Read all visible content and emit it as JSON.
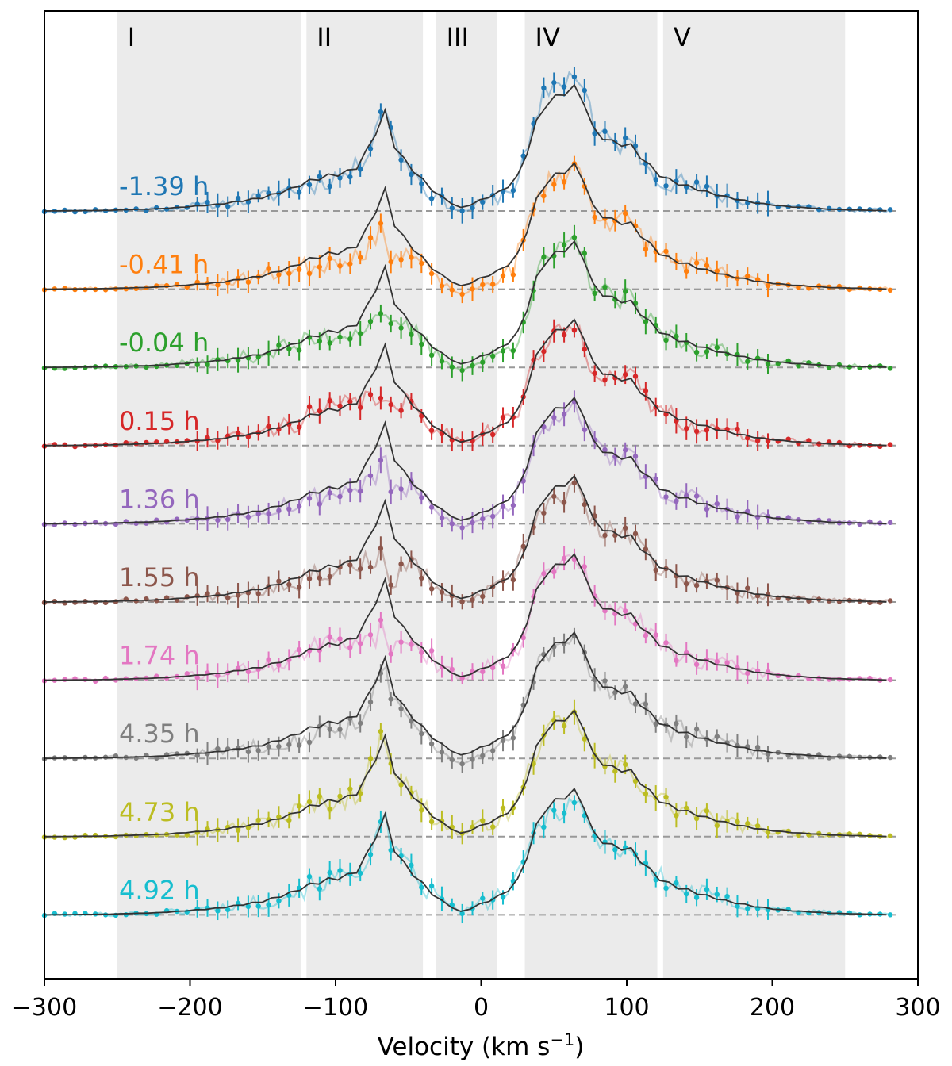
{
  "chart_data": {
    "type": "line",
    "title": "",
    "xlabel": "Velocity (km s",
    "xlabel_sup": "−1",
    "xlabel_close": ")",
    "ylabel": "",
    "xlim": [
      -300,
      300
    ],
    "xticks": [
      -300,
      -200,
      -100,
      0,
      100,
      200,
      300
    ],
    "xtick_labels": [
      "−300",
      "−200",
      "−100",
      "0",
      "100",
      "200",
      "300"
    ],
    "regions": [
      {
        "label": "I",
        "range": [
          -250,
          -124
        ]
      },
      {
        "label": "II",
        "range": [
          -120,
          -40
        ]
      },
      {
        "label": "III",
        "range": [
          -31,
          11
        ]
      },
      {
        "label": "IV",
        "range": [
          30,
          121
        ]
      },
      {
        "label": "V",
        "range": [
          125,
          250
        ]
      }
    ],
    "region_color": "#ebebeb",
    "model_color": "#333333",
    "baseline_color": "#999999",
    "model_profile": [
      [
        -300,
        0
      ],
      [
        -260,
        0.005
      ],
      [
        -220,
        0.02
      ],
      [
        -180,
        0.06
      ],
      [
        -150,
        0.12
      ],
      [
        -130,
        0.2
      ],
      [
        -120,
        0.26
      ],
      [
        -110,
        0.3
      ],
      [
        -100,
        0.33
      ],
      [
        -92,
        0.35
      ],
      [
        -85,
        0.4
      ],
      [
        -78,
        0.55
      ],
      [
        -72,
        0.72
      ],
      [
        -67,
        0.95
      ],
      [
        -62,
        0.65
      ],
      [
        -56,
        0.5
      ],
      [
        -50,
        0.42
      ],
      [
        -42,
        0.3
      ],
      [
        -36,
        0.22
      ],
      [
        -30,
        0.15
      ],
      [
        -24,
        0.1
      ],
      [
        -18,
        0.05
      ],
      [
        -12,
        0.02
      ],
      [
        -8,
        0.05
      ],
      [
        -4,
        0.08
      ],
      [
        0,
        0.1
      ],
      [
        8,
        0.14
      ],
      [
        14,
        0.18
      ],
      [
        20,
        0.24
      ],
      [
        26,
        0.32
      ],
      [
        32,
        0.55
      ],
      [
        38,
        0.8
      ],
      [
        44,
        0.95
      ],
      [
        50,
        1.02
      ],
      [
        56,
        1.05
      ],
      [
        62,
        1.1
      ],
      [
        66,
        1.13
      ],
      [
        70,
        1.0
      ],
      [
        74,
        0.85
      ],
      [
        78,
        0.7
      ],
      [
        84,
        0.66
      ],
      [
        90,
        0.62
      ],
      [
        96,
        0.6
      ],
      [
        100,
        0.62
      ],
      [
        106,
        0.55
      ],
      [
        112,
        0.45
      ],
      [
        120,
        0.35
      ],
      [
        130,
        0.27
      ],
      [
        140,
        0.23
      ],
      [
        155,
        0.17
      ],
      [
        170,
        0.12
      ],
      [
        190,
        0.07
      ],
      [
        210,
        0.04
      ],
      [
        240,
        0.015
      ],
      [
        270,
        0.005
      ],
      [
        283,
        0
      ]
    ],
    "series": [
      {
        "name": "-1.39 h",
        "color": "#1f77b4",
        "seed": 11,
        "dev": {
          "low": -0.05,
          "peak": 0.1,
          "top": 0.12
        }
      },
      {
        "name": "-0.41 h",
        "color": "#ff7f0e",
        "seed": 23,
        "dev": {
          "low": -0.12,
          "peak": -0.3,
          "top": -0.02
        }
      },
      {
        "name": "-0.04 h",
        "color": "#2ca02c",
        "seed": 37,
        "dev": {
          "low": -0.08,
          "peak": -0.3,
          "top": 0.0
        }
      },
      {
        "name": "0.15 h",
        "color": "#d62728",
        "seed": 41,
        "dev": {
          "low": 0.02,
          "peak": -0.4,
          "top": -0.05
        }
      },
      {
        "name": "1.36 h",
        "color": "#9467bd",
        "seed": 53,
        "dev": {
          "low": -0.1,
          "peak": -0.3,
          "top": -0.05
        }
      },
      {
        "name": "1.55 h",
        "color": "#8c564b",
        "seed": 67,
        "dev": {
          "low": -0.05,
          "peak": -0.45,
          "top": -0.1
        }
      },
      {
        "name": "1.74 h",
        "color": "#e377c2",
        "seed": 71,
        "dev": {
          "low": 0.0,
          "peak": -0.4,
          "top": 0.0
        }
      },
      {
        "name": "4.35 h",
        "color": "#7f7f7f",
        "seed": 83,
        "dev": {
          "low": -0.12,
          "peak": -0.05,
          "top": -0.05
        }
      },
      {
        "name": "4.73 h",
        "color": "#bcbd22",
        "seed": 97,
        "dev": {
          "low": 0.0,
          "peak": 0.05,
          "top": -0.05
        }
      },
      {
        "name": "4.92 h",
        "color": "#17becf",
        "seed": 101,
        "dev": {
          "low": 0.0,
          "peak": -0.05,
          "top": -0.08
        }
      }
    ]
  }
}
